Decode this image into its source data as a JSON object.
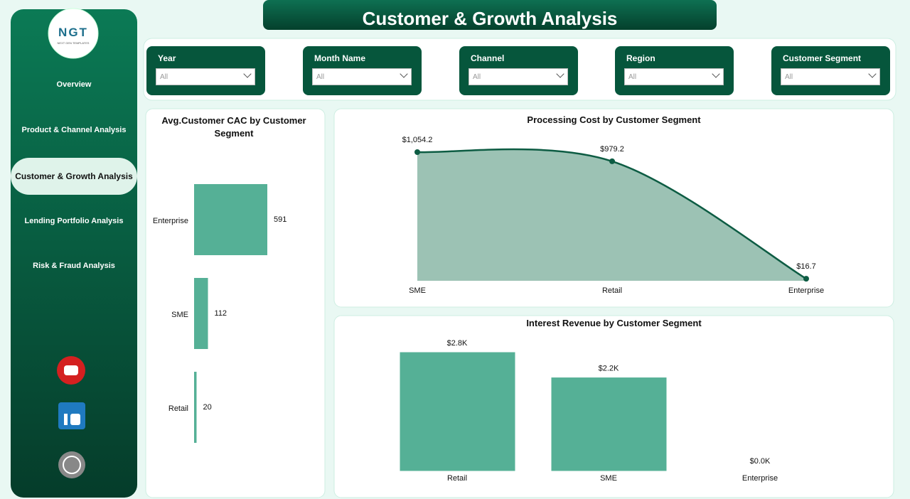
{
  "header": {
    "title": "Customer & Growth Analysis"
  },
  "logo": {
    "text": "NGT",
    "subtext": "NEXT GEN TEMPLATES"
  },
  "nav": {
    "items": [
      "Overview",
      "Product & Channel Analysis",
      "Customer & Growth Analysis",
      "Lending Portfolio Analysis",
      "Risk & Fraud Analysis"
    ],
    "active": 2
  },
  "filters": [
    {
      "label": "Year",
      "value": "All"
    },
    {
      "label": "Month Name",
      "value": "All"
    },
    {
      "label": "Channel",
      "value": "All"
    },
    {
      "label": "Region",
      "value": "All"
    },
    {
      "label": "Customer Segment",
      "value": "All"
    }
  ],
  "chart_data": [
    {
      "type": "hbar",
      "title": "Avg.Customer CAC by Customer Segment",
      "categories": [
        "Enterprise",
        "SME",
        "Retail"
      ],
      "values": [
        591,
        112,
        20
      ],
      "color": "#55b096"
    },
    {
      "type": "area",
      "title": "Processing Cost by Customer Segment",
      "categories": [
        "SME",
        "Retail",
        "Enterprise"
      ],
      "values": [
        1054.2,
        979.2,
        16.7
      ],
      "value_labels": [
        "$1,054.2",
        "$979.2",
        "$16.7"
      ],
      "color": "#9cc2b4",
      "line_color": "#0d5c43"
    },
    {
      "type": "bar",
      "title": "Interest Revenue by Customer Segment",
      "categories": [
        "Retail",
        "SME",
        "Enterprise"
      ],
      "values": [
        2800,
        2200,
        0
      ],
      "value_labels": [
        "$2.8K",
        "$2.2K",
        "$0.0K"
      ],
      "color": "#55b096"
    }
  ]
}
